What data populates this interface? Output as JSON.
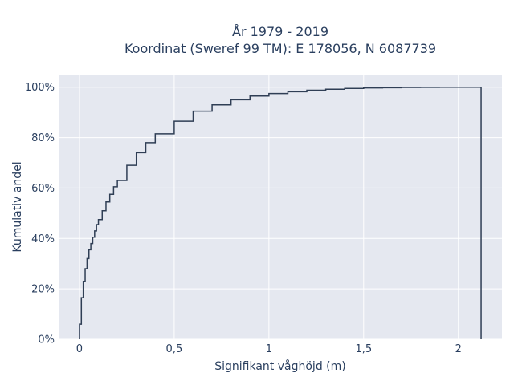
{
  "chart_data": {
    "type": "line",
    "subtype": "empirical-cdf-step",
    "title_line1": "År 1979 - 2019",
    "title_line2": "Koordinat (Sweref 99 TM): E 178056, N 6087739",
    "xlabel": "Signifikant våghöjd (m)",
    "ylabel": "Kumulativ andel",
    "xlim": [
      -0.11,
      2.23
    ],
    "ylim": [
      0,
      1.05
    ],
    "x_ticks": [
      0,
      0.5,
      1,
      1.5,
      2
    ],
    "x_tick_labels": [
      "0",
      "0,5",
      "1",
      "1,5",
      "2"
    ],
    "y_ticks": [
      0,
      0.2,
      0.4,
      0.6,
      0.8,
      1.0
    ],
    "y_tick_labels": [
      "0%",
      "20%",
      "40%",
      "60%",
      "80%",
      "100%"
    ],
    "grid": true,
    "colors": {
      "plot_bg": "#e5e8f0",
      "grid": "#ffffff",
      "line": "#2f3e55",
      "text": "#2a3f5f"
    },
    "series": [
      {
        "x": [
          0,
          0.01,
          0.02,
          0.03,
          0.04,
          0.05,
          0.06,
          0.07,
          0.08,
          0.09,
          0.1,
          0.12,
          0.14,
          0.16,
          0.18,
          0.2,
          0.25,
          0.3,
          0.35,
          0.4,
          0.5,
          0.6,
          0.7,
          0.8,
          0.9,
          1.0,
          1.1,
          1.2,
          1.3,
          1.4,
          1.5,
          1.6,
          1.7,
          1.8,
          1.9,
          2.0,
          2.12
        ],
        "y": [
          0.06,
          0.165,
          0.23,
          0.28,
          0.32,
          0.355,
          0.38,
          0.405,
          0.43,
          0.455,
          0.475,
          0.51,
          0.545,
          0.575,
          0.605,
          0.63,
          0.69,
          0.74,
          0.78,
          0.815,
          0.865,
          0.905,
          0.93,
          0.95,
          0.965,
          0.975,
          0.982,
          0.988,
          0.992,
          0.995,
          0.997,
          0.998,
          0.999,
          0.9995,
          0.9998,
          1.0,
          1.0
        ]
      }
    ]
  }
}
